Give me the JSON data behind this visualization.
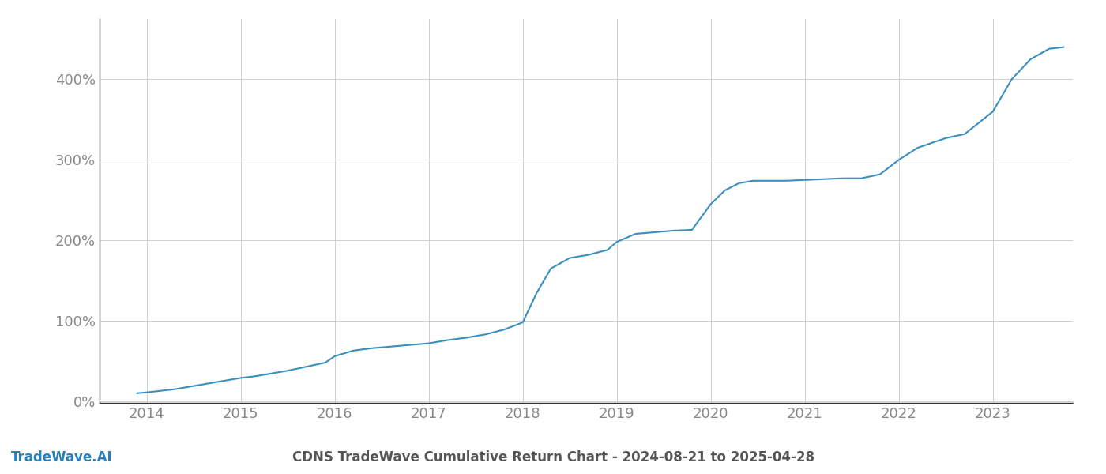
{
  "title": "CDNS TradeWave Cumulative Return Chart - 2024-08-21 to 2025-04-28",
  "watermark": "TradeWave.AI",
  "line_color": "#3a8fbf",
  "background_color": "#ffffff",
  "grid_color": "#d0d0d0",
  "x_tick_color": "#888888",
  "y_tick_color": "#888888",
  "title_color": "#555555",
  "watermark_color": "#2980b9",
  "spine_color": "#333333",
  "xlim": [
    2013.5,
    2023.85
  ],
  "ylim": [
    -0.02,
    4.75
  ],
  "xticks": [
    2014,
    2015,
    2016,
    2017,
    2018,
    2019,
    2020,
    2021,
    2022,
    2023
  ],
  "yticks": [
    0.0,
    1.0,
    2.0,
    3.0,
    4.0
  ],
  "ytick_labels": [
    "0%",
    "100%",
    "200%",
    "300%",
    "400%"
  ],
  "x_values": [
    2013.9,
    2014.0,
    2014.15,
    2014.3,
    2014.5,
    2014.7,
    2014.9,
    2015.0,
    2015.15,
    2015.3,
    2015.5,
    2015.7,
    2015.9,
    2016.0,
    2016.2,
    2016.4,
    2016.6,
    2016.8,
    2017.0,
    2017.1,
    2017.2,
    2017.4,
    2017.6,
    2017.8,
    2018.0,
    2018.15,
    2018.3,
    2018.5,
    2018.7,
    2018.9,
    2019.0,
    2019.2,
    2019.4,
    2019.6,
    2019.8,
    2020.0,
    2020.15,
    2020.3,
    2020.45,
    2020.6,
    2020.8,
    2021.0,
    2021.2,
    2021.4,
    2021.6,
    2021.8,
    2022.0,
    2022.2,
    2022.5,
    2022.7,
    2023.0,
    2023.2,
    2023.4,
    2023.6,
    2023.75
  ],
  "y_values": [
    0.1,
    0.11,
    0.13,
    0.15,
    0.19,
    0.23,
    0.27,
    0.29,
    0.31,
    0.34,
    0.38,
    0.43,
    0.48,
    0.56,
    0.63,
    0.66,
    0.68,
    0.7,
    0.72,
    0.74,
    0.76,
    0.79,
    0.83,
    0.89,
    0.98,
    1.35,
    1.65,
    1.78,
    1.82,
    1.88,
    1.98,
    2.08,
    2.1,
    2.12,
    2.13,
    2.45,
    2.62,
    2.71,
    2.74,
    2.74,
    2.74,
    2.75,
    2.76,
    2.77,
    2.77,
    2.82,
    3.0,
    3.15,
    3.27,
    3.32,
    3.6,
    4.0,
    4.25,
    4.38,
    4.4
  ],
  "line_width": 1.5,
  "tick_fontsize": 13,
  "title_fontsize": 12,
  "watermark_fontsize": 12
}
